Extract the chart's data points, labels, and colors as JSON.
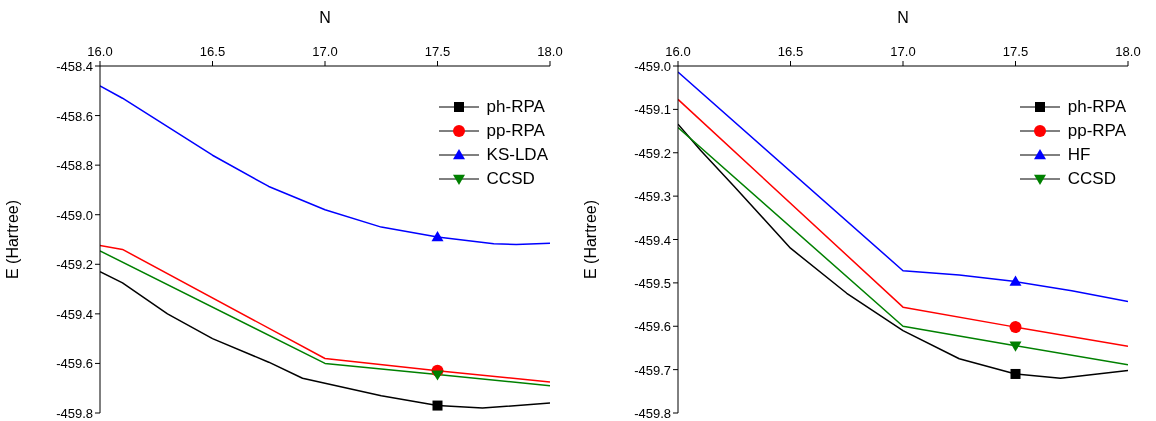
{
  "chart_data": [
    {
      "type": "line",
      "xlabel": "N",
      "ylabel": "E (Hartree)",
      "xlim": [
        16,
        18
      ],
      "xticks": [
        {
          "value": 16,
          "label": "16.0"
        },
        {
          "value": 16.5,
          "label": "16.5"
        },
        {
          "value": 17,
          "label": "17.0"
        },
        {
          "value": 17.5,
          "label": "17.5"
        },
        {
          "value": 18,
          "label": "18.0"
        }
      ],
      "ylim": [
        -459.8,
        -458.4
      ],
      "yticks": [
        -459.8,
        -459.6,
        -459.4,
        -459.2,
        {
          "value": -459,
          "label": "-459.0"
        },
        -458.8,
        -458.6,
        -458.4
      ],
      "legend": "top right",
      "line_style": "solid",
      "series": [
        {
          "name": "ph-RPA",
          "color": "#000000",
          "x": [
            16,
            16.1,
            16.3,
            16.5,
            16.75,
            16.9,
            17,
            17.25,
            17.5,
            17.7,
            18
          ],
          "values": [
            -459.23,
            -459.275,
            -459.4,
            -459.5,
            -459.595,
            -459.66,
            -459.68,
            -459.73,
            -459.77,
            -459.78,
            -459.76
          ]
        },
        {
          "name": "pp-RPA",
          "color": "#ff0000",
          "x": [
            16,
            16.1,
            17,
            17.5,
            18
          ],
          "values": [
            -459.124,
            -459.14,
            -459.58,
            -459.63,
            -459.675
          ]
        },
        {
          "name": "KS-LDA",
          "color": "#0000ff",
          "x": [
            16,
            16.1,
            16.3,
            16.5,
            16.75,
            17,
            17.25,
            17.5,
            17.75,
            17.85,
            18
          ],
          "values": [
            -458.48,
            -458.53,
            -458.645,
            -458.76,
            -458.886,
            -458.98,
            -459.05,
            -459.09,
            -459.117,
            -459.12,
            -459.115
          ]
        },
        {
          "name": "CCSD",
          "color": "#008000",
          "x": [
            16,
            17,
            17.5,
            18
          ],
          "values": [
            -459.146,
            -459.6,
            -459.645,
            -459.69
          ]
        },
        {
          "type": "scatter",
          "color": "#000000",
          "marker": "square",
          "x": [
            17.5
          ],
          "values": [
            -459.77
          ]
        },
        {
          "type": "scatter",
          "color": "#ff0000",
          "marker": "circle",
          "x": [
            17.5
          ],
          "values": [
            -459.63
          ]
        },
        {
          "type": "scatter",
          "color": "#0000ff",
          "marker": "triangle",
          "x": [
            17.5
          ],
          "values": [
            -459.09
          ]
        },
        {
          "type": "scatter",
          "color": "#008000",
          "marker": "triangle-down",
          "x": [
            17.5
          ],
          "values": [
            -459.645
          ]
        }
      ]
    },
    {
      "type": "line",
      "xlabel": "N",
      "ylabel": "E (Hartree)",
      "xlim": [
        16,
        18
      ],
      "xticks": [
        {
          "value": 16,
          "label": "16.0"
        },
        {
          "value": 16.5,
          "label": "16.5"
        },
        {
          "value": 17,
          "label": "17.0"
        },
        {
          "value": 17.5,
          "label": "17.5"
        },
        {
          "value": 18,
          "label": "18.0"
        }
      ],
      "ylim": [
        -459.8,
        -459.0
      ],
      "yticks": [
        -459.8,
        -459.7,
        -459.6,
        -459.5,
        -459.4,
        -459.3,
        -459.2,
        -459.1,
        {
          "value": -459,
          "label": "-459.0"
        }
      ],
      "legend": "top right",
      "line_style": "solid",
      "series": [
        {
          "name": "ph-RPA",
          "color": "#000000",
          "x": [
            16,
            16.1,
            16.25,
            16.5,
            16.75,
            17,
            17.25,
            17.5,
            17.7,
            18
          ],
          "values": [
            -459.134,
            -459.194,
            -459.278,
            -459.42,
            -459.524,
            -459.61,
            -459.675,
            -459.71,
            -459.72,
            -459.702
          ]
        },
        {
          "name": "pp-RPA",
          "color": "#ff0000",
          "x": [
            16,
            17,
            17.5,
            18
          ],
          "values": [
            -459.077,
            -459.556,
            -459.602,
            -459.646
          ]
        },
        {
          "name": "HF",
          "color": "#0000ff",
          "x": [
            16,
            17,
            17.25,
            17.5,
            17.75,
            18
          ],
          "values": [
            -459.014,
            -459.472,
            -459.482,
            -459.497,
            -459.518,
            -459.543
          ]
        },
        {
          "name": "CCSD",
          "color": "#008000",
          "x": [
            16,
            17,
            17.5,
            18
          ],
          "values": [
            -459.142,
            -459.6,
            -459.645,
            -459.689
          ]
        },
        {
          "type": "scatter",
          "color": "#000000",
          "marker": "square",
          "x": [
            17.5
          ],
          "values": [
            -459.71
          ]
        },
        {
          "type": "scatter",
          "color": "#ff0000",
          "marker": "circle",
          "x": [
            17.5
          ],
          "values": [
            -459.602
          ]
        },
        {
          "type": "scatter",
          "color": "#0000ff",
          "marker": "triangle",
          "x": [
            17.5
          ],
          "values": [
            -459.497
          ]
        },
        {
          "type": "scatter",
          "color": "#008000",
          "marker": "triangle-down",
          "x": [
            17.5
          ],
          "values": [
            -459.645
          ]
        }
      ]
    }
  ]
}
